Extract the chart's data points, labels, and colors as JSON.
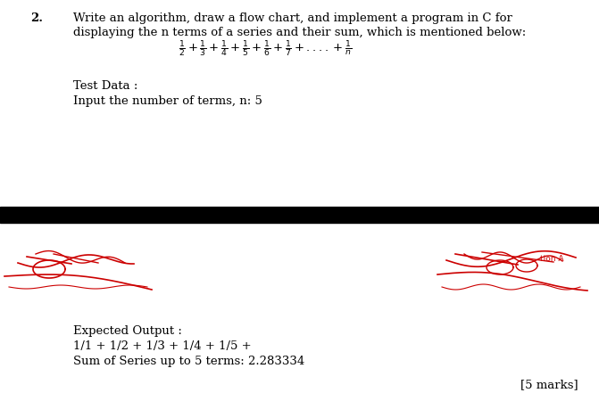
{
  "bg_color": "#ffffff",
  "text_color": "#000000",
  "red_color": "#cc0000",
  "black_bar_color": "#000000",
  "question_number": "2.",
  "question_line1": "Write an algorithm, draw a flow chart, and implement a program in C for",
  "question_line2": "displaying the n terms of a series and their sum, which is mentioned below:",
  "test_data_label": "Test Data :",
  "test_data_input": "Input the number of terms, n: 5",
  "expected_output_label": "Expected Output :",
  "expected_output_line1": "1/1 + 1/2 + 1/3 + 1/4 + 1/5 +",
  "expected_output_line2": "Sum of Series up to 5 terms: 2.283334",
  "marks": "[5 marks]",
  "title_fontsize": 9.5,
  "body_fontsize": 9.5
}
